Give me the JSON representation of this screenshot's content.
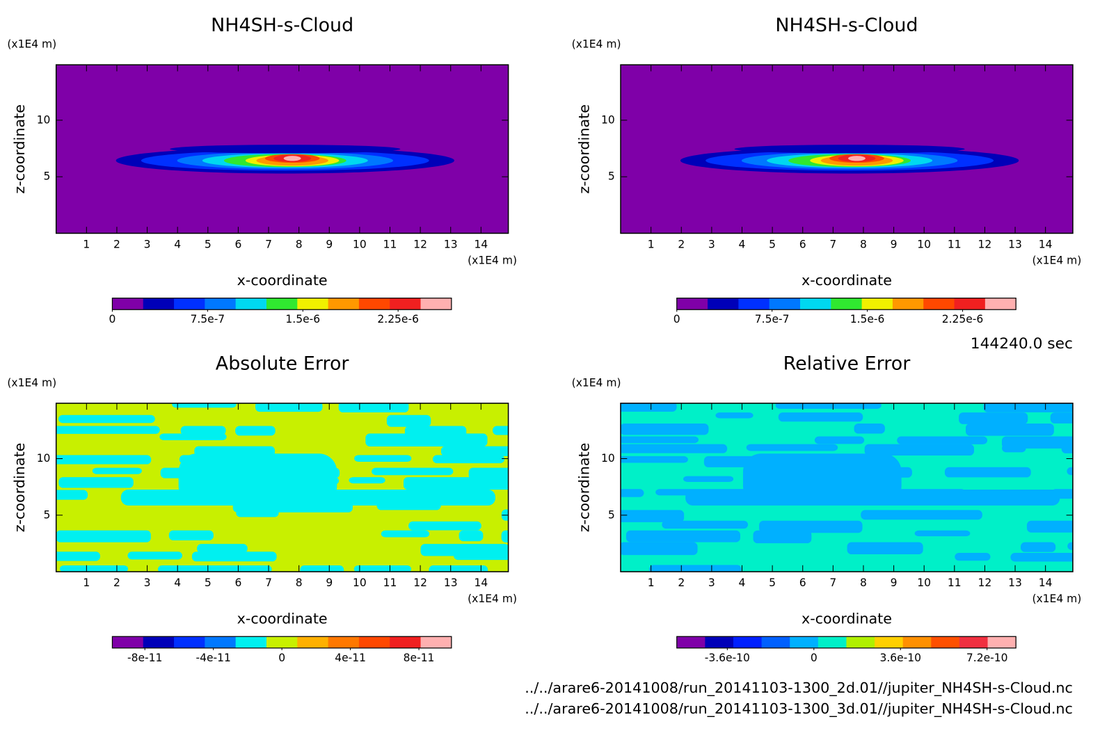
{
  "chart_data": [
    {
      "type": "contour",
      "title": "NH4SH-s-Cloud",
      "xlabel": "x-coordinate",
      "ylabel": "z-coordinate",
      "x_unit": "(x1E4 m)",
      "y_unit": "(x1E4 m)",
      "xlim": [
        0,
        14.9
      ],
      "ylim": [
        0,
        14.9
      ],
      "xticks": [
        1,
        2,
        3,
        4,
        5,
        6,
        7,
        8,
        9,
        10,
        11,
        12,
        13,
        14
      ],
      "yticks": [
        5,
        10
      ],
      "colorbar": {
        "colors": [
          "#7f00a8",
          "#0000b8",
          "#0030ff",
          "#0078ff",
          "#00d8f0",
          "#30e830",
          "#f0f000",
          "#ff9800",
          "#ff4800",
          "#f02020",
          "#ffb0b0"
        ],
        "lim": [
          0,
          2.67e-06
        ],
        "ticks": [
          0,
          {
            "value": 7.5e-07,
            "label": "7.5e-7"
          },
          {
            "value": 1.5e-06,
            "label": "1.5e-6"
          },
          {
            "value": 2.25e-06,
            "label": "2.25e-6"
          }
        ]
      }
    },
    {
      "type": "contour",
      "title": "NH4SH-s-Cloud",
      "xlabel": "x-coordinate",
      "ylabel": "z-coordinate",
      "x_unit": "(x1E4 m)",
      "y_unit": "(x1E4 m)",
      "xlim": [
        0,
        14.9
      ],
      "ylim": [
        0,
        14.9
      ],
      "xticks": [
        1,
        2,
        3,
        4,
        5,
        6,
        7,
        8,
        9,
        10,
        11,
        12,
        13,
        14
      ],
      "yticks": [
        5,
        10
      ],
      "colorbar": {
        "colors": [
          "#7f00a8",
          "#0000b8",
          "#0030ff",
          "#0078ff",
          "#00d8f0",
          "#30e830",
          "#f0f000",
          "#ff9800",
          "#ff4800",
          "#f02020",
          "#ffb0b0"
        ],
        "lim": [
          0,
          2.67e-06
        ],
        "ticks": [
          0,
          {
            "value": 7.5e-07,
            "label": "7.5e-7"
          },
          {
            "value": 1.5e-06,
            "label": "1.5e-6"
          },
          {
            "value": 2.25e-06,
            "label": "2.25e-6"
          }
        ]
      }
    },
    {
      "type": "contour",
      "title": "Absolute Error",
      "xlabel": "x-coordinate",
      "ylabel": "z-coordinate",
      "x_unit": "(x1E4 m)",
      "y_unit": "(x1E4 m)",
      "xlim": [
        0,
        14.9
      ],
      "ylim": [
        0,
        14.9
      ],
      "xticks": [
        1,
        2,
        3,
        4,
        5,
        6,
        7,
        8,
        9,
        10,
        11,
        12,
        13,
        14
      ],
      "yticks": [
        5,
        10
      ],
      "colorbar": {
        "colors": [
          "#7f00a8",
          "#0000b8",
          "#0030ff",
          "#0078ff",
          "#00f0f0",
          "#c8f000",
          "#ffb000",
          "#ff7800",
          "#ff4800",
          "#f02020",
          "#ffb0b0"
        ],
        "lim": [
          -9.9e-11,
          9.9e-11
        ],
        "ticks": [
          {
            "value": -8e-11,
            "label": "-8e-11"
          },
          {
            "value": -4e-11,
            "label": "-4e-11"
          },
          0,
          {
            "value": 4e-11,
            "label": "4e-11"
          },
          {
            "value": 8e-11,
            "label": "8e-11"
          }
        ]
      }
    },
    {
      "type": "contour",
      "title": "Relative Error",
      "xlabel": "x-coordinate",
      "ylabel": "z-coordinate",
      "x_unit": "(x1E4 m)",
      "y_unit": "(x1E4 m)",
      "xlim": [
        0,
        14.9
      ],
      "ylim": [
        0,
        14.9
      ],
      "xticks": [
        1,
        2,
        3,
        4,
        5,
        6,
        7,
        8,
        9,
        10,
        11,
        12,
        13,
        14
      ],
      "yticks": [
        5,
        10
      ],
      "colorbar": {
        "colors": [
          "#7f00a8",
          "#0000b8",
          "#0020ff",
          "#0060ff",
          "#00b0ff",
          "#00f0c8",
          "#b0f000",
          "#ffd000",
          "#ff9000",
          "#ff5000",
          "#f03040",
          "#ffb0b0"
        ],
        "lim": [
          -5.7e-10,
          8.4e-10
        ],
        "ticks": [
          {
            "value": -3.6e-10,
            "label": "-3.6e-10"
          },
          0,
          {
            "value": 3.6e-10,
            "label": "3.6e-10"
          },
          {
            "value": 7.2e-10,
            "label": "7.2e-10"
          }
        ]
      }
    }
  ],
  "time_label": "144240.0 sec",
  "files": [
    "../../arare6-20141008/run_20141103-1300_2d.01//jupiter_NH4SH-s-Cloud.nc",
    "../../arare6-20141008/run_20141103-1300_3d.01//jupiter_NH4SH-s-Cloud.nc"
  ]
}
